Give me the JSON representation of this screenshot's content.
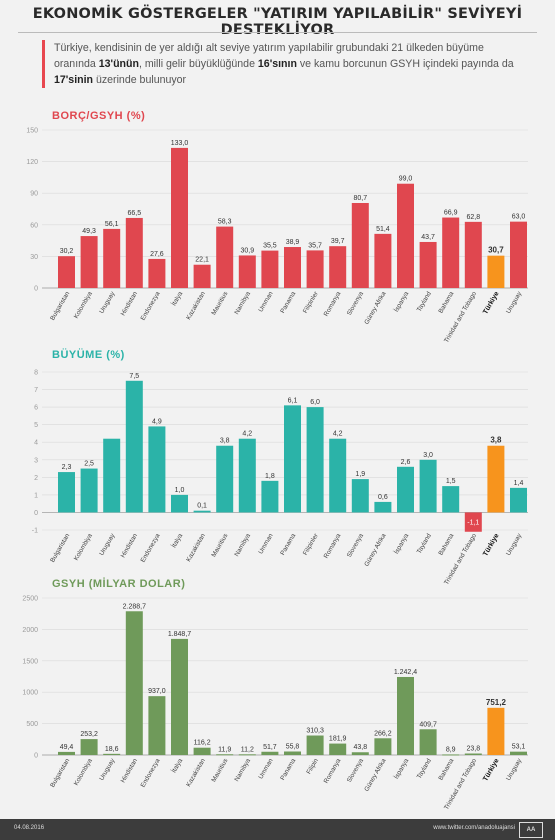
{
  "header": {
    "title": "EKONOMİK GÖSTERGELER \"YATIRIM YAPILABİLİR\" SEVİYEYİ DESTEKLİYOR",
    "intro_1": "Türkiye, kendisinin de yer aldığı alt seviye yatırım yapılabilir grubundaki 21 ülkeden büyüme",
    "intro_2a": "oranında ",
    "intro_2b": "13'ünün",
    "intro_2c": ", milli gelir büyüklüğünde ",
    "intro_2d": "16'sının",
    "intro_2e": " ve kamu borcunun GSYH içindeki payında da",
    "intro_3a": "17'sinin",
    "intro_3b": " üzerinde bulunuyor"
  },
  "colors": {
    "debt": "#e0474f",
    "growth": "#2bb3a8",
    "gdp": "#6f9a5a",
    "highlight": "#f7941d",
    "grid": "#d9d9d9"
  },
  "footer": {
    "date": "04.08.2016",
    "site": "www.twitter.com/anadoluajansi",
    "logo": "AA"
  },
  "chart_data": [
    {
      "type": "bar",
      "title": "BORÇ/GSYH (%)",
      "categories": [
        "Bulgaristan",
        "Kolombiya",
        "Uruguay",
        "Hindistan",
        "Endonezya",
        "İtalya",
        "Kazakistan",
        "Mauritius",
        "Namibya",
        "Umman",
        "Panama",
        "Filipinler",
        "Romanya",
        "Slovenya",
        "Güney Afrika",
        "İspanya",
        "Tayland",
        "Bahama",
        "Trinidad and Tobago",
        "Türkiye",
        "Uruguay"
      ],
      "values": [
        30.2,
        49.3,
        56.1,
        66.5,
        27.6,
        133.0,
        22.1,
        58.3,
        30.9,
        35.5,
        38.9,
        35.7,
        39.7,
        80.7,
        51.4,
        99.0,
        43.7,
        66.9,
        62.8,
        30.7,
        63.0
      ],
      "labels": [
        "30,2",
        "49,3",
        "56,1",
        "66,5",
        "27,6",
        "133,0",
        "22,1",
        "58,3",
        "30,9",
        "35,5",
        "38,9",
        "35,7",
        "39,7",
        "80,7",
        "51,4",
        "99,0",
        "43,7",
        "66,9",
        "62,8",
        "30,7",
        "63,0"
      ],
      "highlight": "Türkiye",
      "ylim": [
        0,
        150
      ],
      "yticks": [
        0,
        30,
        60,
        90,
        120,
        150
      ],
      "ytick_labels": [
        "0",
        "30",
        "60",
        "90",
        "120",
        "150"
      ]
    },
    {
      "type": "bar",
      "title": "BÜYÜME (%)",
      "categories": [
        "Bulgaristan",
        "Kolombiya",
        "Uruguay",
        "Hindistan",
        "Endonezya",
        "İtalya",
        "Kazakistan",
        "Mauritius",
        "Namibya",
        "Umman",
        "Panama",
        "Filipinler",
        "Romanya",
        "Slovenya",
        "Güney Afrika",
        "İspanya",
        "Tayland",
        "Bahama",
        "Trinidad and Tobago",
        "Türkiye",
        "Uruguay"
      ],
      "values": [
        2.3,
        2.5,
        4.2,
        7.5,
        4.9,
        1.0,
        0.1,
        3.8,
        4.2,
        1.8,
        6.1,
        6.0,
        4.2,
        1.9,
        0.6,
        2.6,
        3.0,
        1.5,
        -1.1,
        3.8,
        1.4
      ],
      "labels": [
        "2,3",
        "2,5",
        "",
        "7,5",
        "4,9",
        "1,0",
        "0,1",
        "3,8",
        "4,2",
        "1,8",
        "6,1",
        "6,0",
        "4,2",
        "1,9",
        "0,6",
        "2,6",
        "3,0",
        "1,5",
        "-1,1",
        "3,8",
        "1,4"
      ],
      "highlight": "Türkiye",
      "ylim": [
        -1,
        8
      ],
      "yticks": [
        -1,
        0,
        1,
        2,
        3,
        4,
        5,
        6,
        7,
        8
      ],
      "ytick_labels": [
        "-1",
        "0",
        "1",
        "2",
        "3",
        "4",
        "5",
        "6",
        "7",
        "8"
      ]
    },
    {
      "type": "bar",
      "title": "GSYH (MİLYAR DOLAR)",
      "categories": [
        "Bulgaristan",
        "Kolombiya",
        "Uruguay",
        "Hindistan",
        "Endonezya",
        "İtalya",
        "Kazakistan",
        "Mauritius",
        "Namibya",
        "Umman",
        "Panama",
        "Filipin",
        "Romanya",
        "Slovenya",
        "Güney Afrika",
        "İspanya",
        "Tayland",
        "Bahama",
        "Trinidad and Tobago",
        "Türkiye",
        "Uruguay"
      ],
      "values": [
        49.4,
        253.2,
        18.6,
        2288.7,
        937.0,
        1848.7,
        116.2,
        11.9,
        11.2,
        51.7,
        55.8,
        310.3,
        181.9,
        43.8,
        266.2,
        1242.4,
        409.7,
        8.9,
        23.8,
        751.2,
        53.1
      ],
      "labels": [
        "49,4",
        "253,2",
        "18,6",
        "2.288,7",
        "937,0",
        "1.848,7",
        "116,2",
        "11,9",
        "11,2",
        "51,7",
        "55,8",
        "310,3",
        "181,9",
        "43,8",
        "266,2",
        "1.242,4",
        "409,7",
        "8,9",
        "23,8",
        "751,2",
        "53,1"
      ],
      "highlight": "Türkiye",
      "ylim": [
        0,
        2500
      ],
      "yticks": [
        0,
        500,
        1000,
        1500,
        2000,
        2500
      ],
      "ytick_labels": [
        "0",
        "500",
        "1000",
        "1500",
        "2000",
        "2500"
      ]
    }
  ]
}
